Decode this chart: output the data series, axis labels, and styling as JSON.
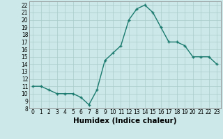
{
  "xlabel": "Humidex (Indice chaleur)",
  "x_values": [
    0,
    1,
    2,
    3,
    4,
    5,
    6,
    7,
    8,
    9,
    10,
    11,
    12,
    13,
    14,
    15,
    16,
    17,
    18,
    19,
    20,
    21,
    22,
    23
  ],
  "y_values": [
    11,
    11,
    10.5,
    10,
    10,
    10,
    9.5,
    8.5,
    10.5,
    14.5,
    15.5,
    16.5,
    20,
    21.5,
    22,
    21,
    19,
    17,
    17,
    16.5,
    15,
    15,
    15,
    14
  ],
  "xlim": [
    -0.5,
    23.5
  ],
  "ylim": [
    8,
    22.5
  ],
  "yticks": [
    8,
    9,
    10,
    11,
    12,
    13,
    14,
    15,
    16,
    17,
    18,
    19,
    20,
    21,
    22
  ],
  "xticks": [
    0,
    1,
    2,
    3,
    4,
    5,
    6,
    7,
    8,
    9,
    10,
    11,
    12,
    13,
    14,
    15,
    16,
    17,
    18,
    19,
    20,
    21,
    22,
    23
  ],
  "line_color": "#1a7a6e",
  "marker": "+",
  "bg_color": "#cce8e8",
  "grid_color": "#aacccc",
  "tick_fontsize": 5.5,
  "label_fontsize": 7.5
}
